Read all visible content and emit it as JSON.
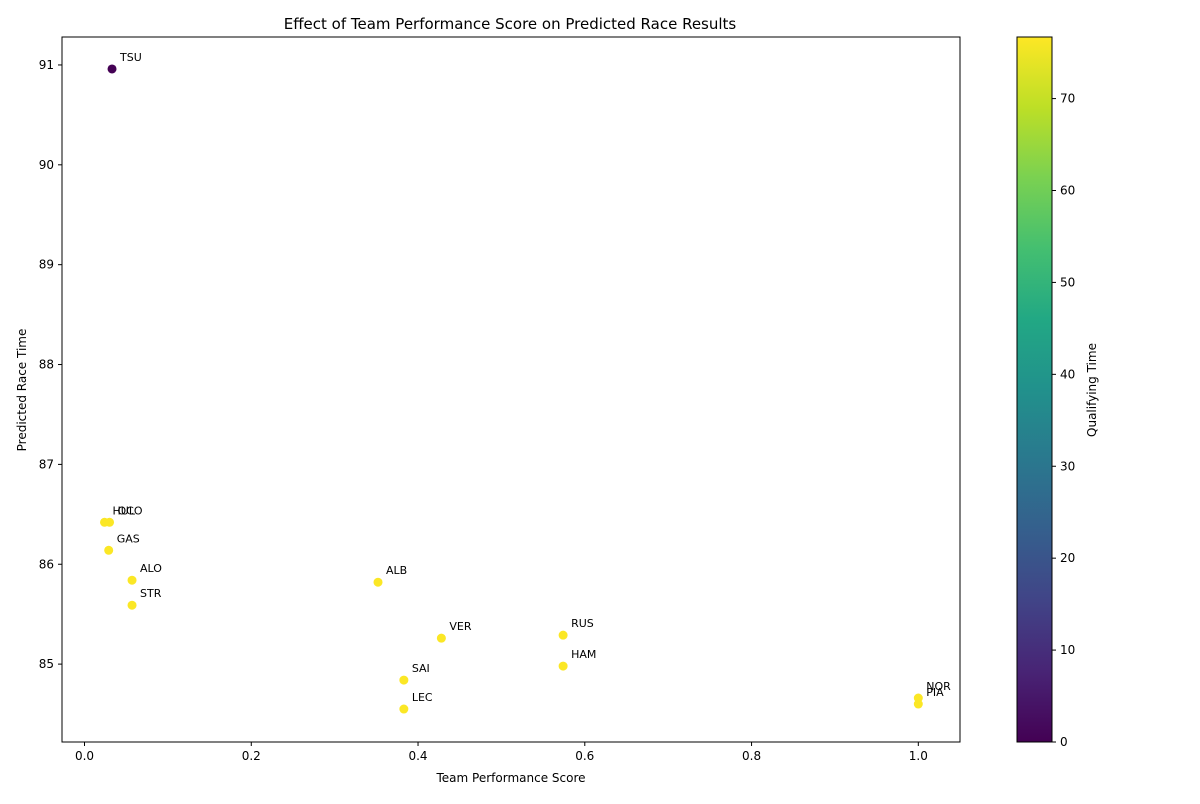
{
  "chart_data": {
    "type": "scatter",
    "title": "Effect of Team Performance Score on Predicted Race Results",
    "xlabel": "Team Performance Score",
    "ylabel": "Predicted Race Time",
    "xlim": [
      -0.027,
      1.05
    ],
    "ylim": [
      84.22,
      91.28
    ],
    "xticks": [
      0.0,
      0.2,
      0.4,
      0.6,
      0.8,
      1.0
    ],
    "xtick_labels": [
      "0.0",
      "0.2",
      "0.4",
      "0.6",
      "0.8",
      "1.0"
    ],
    "yticks": [
      85,
      86,
      87,
      88,
      89,
      90,
      91
    ],
    "ytick_labels": [
      "85",
      "86",
      "87",
      "88",
      "89",
      "90",
      "91"
    ],
    "grid": false,
    "colormap": "viridis",
    "colorbar": {
      "label": "Qualifying Time",
      "range": [
        0,
        76.7
      ],
      "ticks": [
        0,
        10,
        20,
        30,
        40,
        50,
        60,
        70
      ],
      "tick_labels": [
        "0",
        "10",
        "20",
        "30",
        "40",
        "50",
        "60",
        "70"
      ]
    },
    "points": [
      {
        "label": "TSU",
        "x": 0.033,
        "y": 90.96,
        "color_value": 0
      },
      {
        "label": "HUL",
        "x": 0.024,
        "y": 86.42,
        "color_value": 76.5
      },
      {
        "label": "OCO",
        "x": 0.03,
        "y": 86.42,
        "color_value": 76.5
      },
      {
        "label": "GAS",
        "x": 0.029,
        "y": 86.14,
        "color_value": 76.5
      },
      {
        "label": "ALO",
        "x": 0.057,
        "y": 85.84,
        "color_value": 76.5
      },
      {
        "label": "STR",
        "x": 0.057,
        "y": 85.59,
        "color_value": 76.5
      },
      {
        "label": "ALB",
        "x": 0.352,
        "y": 85.82,
        "color_value": 76.5
      },
      {
        "label": "VER",
        "x": 0.428,
        "y": 85.26,
        "color_value": 76.5
      },
      {
        "label": "RUS",
        "x": 0.574,
        "y": 85.29,
        "color_value": 76.5
      },
      {
        "label": "HAM",
        "x": 0.574,
        "y": 84.98,
        "color_value": 76.5
      },
      {
        "label": "SAI",
        "x": 0.383,
        "y": 84.84,
        "color_value": 76.5
      },
      {
        "label": "LEC",
        "x": 0.383,
        "y": 84.55,
        "color_value": 76.5
      },
      {
        "label": "NOR",
        "x": 1.0,
        "y": 84.66,
        "color_value": 76.5
      },
      {
        "label": "PIA",
        "x": 1.0,
        "y": 84.6,
        "color_value": 76.5
      }
    ]
  }
}
